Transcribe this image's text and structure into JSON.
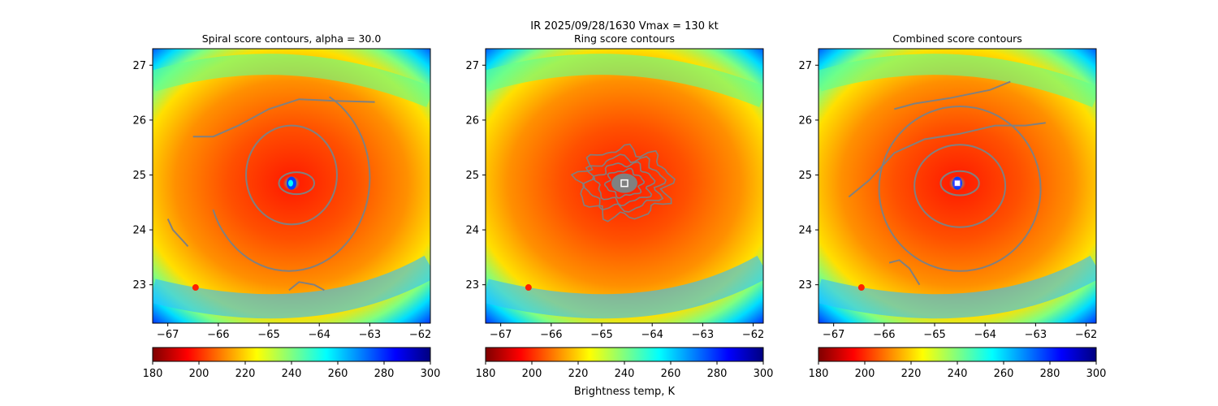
{
  "suptitle": "IR  2025/09/28/1630    Vmax = 130 kt",
  "colorbar_label": "Brightness temp, K",
  "colormap": [
    "#7f0000",
    "#ff0000",
    "#ff8000",
    "#ffff00",
    "#80ff80",
    "#00ffff",
    "#0080ff",
    "#0000ff",
    "#00007f"
  ],
  "contour_color": "#808080",
  "chart_data": [
    {
      "type": "heatmap",
      "title": "Spiral score contours, alpha = 30.0",
      "xlim": [
        -67.3,
        -61.8
      ],
      "ylim": [
        22.3,
        27.3
      ],
      "xticks": [
        -67,
        -66,
        -65,
        -64,
        -63,
        -62
      ],
      "yticks": [
        23,
        24,
        25,
        26,
        27
      ],
      "eye_center": [
        -64.55,
        24.85
      ],
      "colorbar": {
        "range": [
          180,
          300
        ],
        "ticks": [
          180,
          200,
          220,
          240,
          260,
          280,
          300
        ]
      },
      "contours": [
        {
          "kind": "closed",
          "cx": -64.45,
          "cy": 24.85,
          "rx": 0.35,
          "ry": 0.2
        },
        {
          "kind": "closed",
          "cx": -64.55,
          "cy": 25.0,
          "rx": 0.9,
          "ry": 0.9
        },
        {
          "kind": "arc",
          "cx": -64.6,
          "cy": 24.95,
          "rx": 1.6,
          "ry": 1.7,
          "from": 200,
          "to": 420
        },
        {
          "kind": "line",
          "points": [
            [
              -66.5,
              25.7
            ],
            [
              -66.1,
              25.7
            ],
            [
              -65.6,
              25.9
            ],
            [
              -65.0,
              26.2
            ],
            [
              -64.4,
              26.38
            ],
            [
              -63.7,
              26.35
            ],
            [
              -62.9,
              26.33
            ]
          ]
        },
        {
          "kind": "line",
          "points": [
            [
              -67.0,
              24.2
            ],
            [
              -66.9,
              24.0
            ],
            [
              -66.7,
              23.8
            ],
            [
              -66.6,
              23.7
            ]
          ]
        },
        {
          "kind": "line",
          "points": [
            [
              -64.6,
              22.9
            ],
            [
              -64.4,
              23.05
            ],
            [
              -64.1,
              23.0
            ],
            [
              -63.9,
              22.9
            ]
          ]
        }
      ]
    },
    {
      "type": "heatmap",
      "title": "Ring score contours",
      "xlim": [
        -67.3,
        -61.8
      ],
      "ylim": [
        22.3,
        27.3
      ],
      "xticks": [
        -67,
        -66,
        -65,
        -64,
        -63,
        -62
      ],
      "yticks": [
        23,
        24,
        25,
        26,
        27
      ],
      "eye_center": [
        -64.55,
        24.85
      ],
      "marker": "square",
      "colorbar": {
        "range": [
          180,
          300
        ],
        "ticks": [
          180,
          200,
          220,
          240,
          260,
          280,
          300
        ]
      },
      "contours": [
        {
          "kind": "ring_cluster",
          "cx": -64.55,
          "cy": 24.85
        }
      ]
    },
    {
      "type": "heatmap",
      "title": "Combined score contours",
      "xlim": [
        -67.3,
        -61.8
      ],
      "ylim": [
        22.3,
        27.3
      ],
      "xticks": [
        -67,
        -66,
        -65,
        -64,
        -63,
        -62
      ],
      "yticks": [
        23,
        24,
        25,
        26,
        27
      ],
      "eye_center": [
        -64.55,
        24.85
      ],
      "marker": "square",
      "colorbar": {
        "range": [
          180,
          300
        ],
        "ticks": [
          180,
          200,
          220,
          240,
          260,
          280,
          300
        ]
      },
      "contours": [
        {
          "kind": "closed",
          "cx": -64.5,
          "cy": 24.85,
          "rx": 0.38,
          "ry": 0.22
        },
        {
          "kind": "closed",
          "cx": -64.5,
          "cy": 24.8,
          "rx": 0.9,
          "ry": 0.75
        },
        {
          "kind": "closed",
          "cx": -64.5,
          "cy": 24.75,
          "rx": 1.6,
          "ry": 1.5
        },
        {
          "kind": "line",
          "points": [
            [
              -66.7,
              24.6
            ],
            [
              -66.3,
              24.9
            ],
            [
              -65.8,
              25.4
            ],
            [
              -65.2,
              25.65
            ],
            [
              -64.5,
              25.75
            ],
            [
              -63.8,
              25.9
            ],
            [
              -63.2,
              25.9
            ],
            [
              -62.8,
              25.95
            ]
          ]
        },
        {
          "kind": "line",
          "points": [
            [
              -65.8,
              26.2
            ],
            [
              -65.4,
              26.3
            ],
            [
              -64.7,
              26.4
            ],
            [
              -63.9,
              26.55
            ],
            [
              -63.5,
              26.7
            ]
          ]
        },
        {
          "kind": "line",
          "points": [
            [
              -65.9,
              23.4
            ],
            [
              -65.7,
              23.45
            ],
            [
              -65.5,
              23.3
            ],
            [
              -65.3,
              23.0
            ]
          ]
        }
      ]
    }
  ]
}
